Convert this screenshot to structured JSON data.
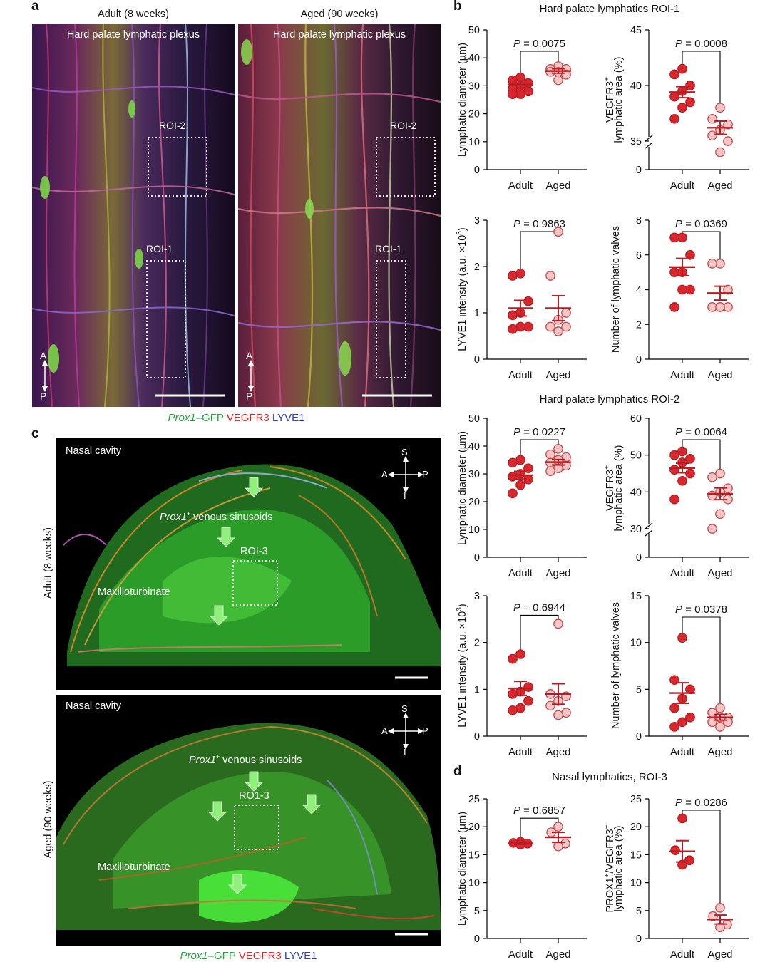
{
  "panel_a": {
    "letter": "a",
    "images": [
      {
        "title": "Adult (8 weeks)",
        "label": "Hard palate lymphatic plexus",
        "roi2": "ROI-2",
        "roi1": "ROI-1",
        "axis_a": "A",
        "axis_p": "P"
      },
      {
        "title": "Aged (90 weeks)",
        "label": "Hard palate lymphatic plexus",
        "roi2": "ROI-2",
        "roi1": "ROI-1",
        "axis_a": "A",
        "axis_p": "P"
      }
    ],
    "legend": {
      "gene": "Prox1",
      "gfp": "–GFP",
      "vegfr3": "VEGFR3",
      "lyve1": "LYVE1"
    }
  },
  "panel_c": {
    "letter": "c",
    "images": [
      {
        "row_label": "Adult (8 weeks)",
        "cavity": "Nasal cavity",
        "sinusoids_gene": "Prox1",
        "sinusoids_sup": "+",
        "sinusoids": " venous sinusoids",
        "roi": "ROI-3",
        "turbinate": "Maxilloturbinate",
        "axis_s": "S",
        "axis_i": "I",
        "axis_a": "A",
        "axis_p": "P"
      },
      {
        "row_label": "Aged (90 weeks)",
        "cavity": "Nasal cavity",
        "sinusoids_gene": "Prox1",
        "sinusoids_sup": "+",
        "sinusoids": " venous sinusoids",
        "roi": "RO1-3",
        "turbinate": "Maxilloturbinate",
        "axis_s": "S",
        "axis_i": "I",
        "axis_a": "A",
        "axis_p": "P"
      }
    ],
    "legend": {
      "gene": "Prox1",
      "gfp": "–GFP",
      "vegfr3": "VEGFR3",
      "lyve1": "LYVE1"
    }
  },
  "panel_b": {
    "letter": "b",
    "roi1_title": "Hard palate lymphatics ROI-1",
    "roi2_title": "Hard palate lymphatics ROI-2"
  },
  "panel_d": {
    "letter": "d",
    "title": "Nasal lymphatics, ROI-3"
  },
  "colors": {
    "adult": "#d9272e",
    "aged": "#f6c6c4",
    "mean_bar": "#b81d24"
  },
  "chart_data": [
    {
      "type": "scatter",
      "panel": "b-ROI-1",
      "ylabel": "Lymphatic diameter (µm)",
      "categories": [
        "Adult",
        "Aged"
      ],
      "ylim": [
        0,
        50
      ],
      "yticks": [
        0,
        10,
        20,
        30,
        40,
        50
      ],
      "p_value": "0.0075",
      "series": [
        {
          "name": "Adult",
          "values": [
            33,
            32,
            30,
            29,
            28,
            27,
            27,
            31
          ],
          "mean": 30.5,
          "sem": 1.3
        },
        {
          "name": "Aged",
          "values": [
            37,
            36,
            35,
            35,
            36,
            34,
            32
          ],
          "mean": 35.3,
          "sem": 0.8
        }
      ]
    },
    {
      "type": "scatter",
      "panel": "b-ROI-1",
      "ylabel": "VEGFR3+ lymphatic area (%)",
      "ylabel_sup": "+",
      "ylabel_main": "VEGFR3",
      "ylabel_line2": "lymphatic area (%)",
      "categories": [
        "Adult",
        "Aged"
      ],
      "ylim": [
        0,
        45
      ],
      "axis_break": true,
      "yticks": [
        0,
        35,
        40,
        45
      ],
      "p_value": "0.0008",
      "series": [
        {
          "name": "Adult",
          "values": [
            41.5,
            41,
            40,
            39.5,
            39,
            38.5,
            38,
            37
          ],
          "mean": 39.4,
          "sem": 0.5
        },
        {
          "name": "Aged",
          "values": [
            38,
            37,
            36.5,
            36,
            35.5,
            35,
            34
          ],
          "mean": 36.2,
          "sem": 0.6
        }
      ]
    },
    {
      "type": "scatter",
      "panel": "b-ROI-1",
      "ylabel": "LYVE1 intensity (a.u. ×10",
      "ylabel_sup": "3",
      "ylabel_tail": ")",
      "categories": [
        "Adult",
        "Aged"
      ],
      "ylim": [
        0,
        3
      ],
      "yticks": [
        0,
        1,
        2,
        3
      ],
      "p_value": "0.9863",
      "series": [
        {
          "name": "Adult",
          "values": [
            1.8,
            1.85,
            1.25,
            1.0,
            0.95,
            0.7,
            0.65,
            0.7
          ],
          "mean": 1.1,
          "sem": 0.17
        },
        {
          "name": "Aged",
          "values": [
            2.75,
            1.8,
            1.0,
            0.85,
            0.7,
            0.7,
            0.6
          ],
          "mean": 1.1,
          "sem": 0.27
        }
      ]
    },
    {
      "type": "scatter",
      "panel": "b-ROI-1",
      "ylabel": "Number of lymphatic valves",
      "categories": [
        "Adult",
        "Aged"
      ],
      "ylim": [
        0,
        8
      ],
      "yticks": [
        0,
        2,
        4,
        6,
        8
      ],
      "p_value": "0.0369",
      "series": [
        {
          "name": "Adult",
          "values": [
            7,
            7,
            6,
            5,
            5,
            4,
            4,
            3
          ],
          "mean": 5.3,
          "sem": 0.5
        },
        {
          "name": "Aged",
          "values": [
            5.5,
            5.5,
            4,
            3,
            3,
            3,
            3
          ],
          "mean": 3.8,
          "sem": 0.4
        }
      ]
    },
    {
      "type": "scatter",
      "panel": "b-ROI-2",
      "ylabel": "Lymphatic diameter (µm)",
      "categories": [
        "Adult",
        "Aged"
      ],
      "ylim": [
        0,
        50
      ],
      "yticks": [
        0,
        10,
        20,
        30,
        40,
        50
      ],
      "p_value": "0.0227",
      "series": [
        {
          "name": "Adult",
          "values": [
            35,
            34,
            32,
            30,
            29,
            28,
            26,
            23
          ],
          "mean": 29.5,
          "sem": 1.4
        },
        {
          "name": "Aged",
          "values": [
            39,
            37,
            36,
            35,
            34,
            33,
            32,
            31
          ],
          "mean": 34.2,
          "sem": 1.0
        }
      ]
    },
    {
      "type": "scatter",
      "panel": "b-ROI-2",
      "ylabel": "VEGFR3+ lymphatic area (%)",
      "ylabel_sup": "+",
      "ylabel_main": "VEGFR3",
      "ylabel_line2": "lymphatic area (%)",
      "categories": [
        "Adult",
        "Aged"
      ],
      "ylim": [
        0,
        60
      ],
      "axis_break": true,
      "yticks": [
        0,
        30,
        40,
        50,
        60
      ],
      "p_value": "0.0064",
      "series": [
        {
          "name": "Adult",
          "values": [
            51,
            50,
            49,
            48,
            46,
            45,
            43,
            38
          ],
          "mean": 46.5,
          "sem": 1.3
        },
        {
          "name": "Aged",
          "values": [
            45,
            44,
            41,
            40,
            39,
            38,
            34,
            30
          ],
          "mean": 39.5,
          "sem": 1.6
        }
      ]
    },
    {
      "type": "scatter",
      "panel": "b-ROI-2",
      "ylabel": "LYVE1 intensity (a.u. ×10",
      "ylabel_sup": "3",
      "ylabel_tail": ")",
      "categories": [
        "Adult",
        "Aged"
      ],
      "ylim": [
        0,
        3
      ],
      "yticks": [
        0,
        1,
        2,
        3
      ],
      "p_value": "0.6944",
      "series": [
        {
          "name": "Adult",
          "values": [
            1.75,
            1.65,
            1.05,
            0.95,
            0.9,
            0.75,
            0.6,
            0.55
          ],
          "mean": 1.02,
          "sem": 0.15
        },
        {
          "name": "Aged",
          "values": [
            2.4,
            0.9,
            0.85,
            0.75,
            0.65,
            0.5,
            0.45
          ],
          "mean": 0.9,
          "sem": 0.22
        }
      ]
    },
    {
      "type": "scatter",
      "panel": "b-ROI-2",
      "ylabel": "Number of lymphatic valves",
      "categories": [
        "Adult",
        "Aged"
      ],
      "ylim": [
        0,
        15
      ],
      "yticks": [
        0,
        5,
        10,
        15
      ],
      "p_value": "0.0378",
      "series": [
        {
          "name": "Adult",
          "values": [
            10.5,
            6,
            5,
            4,
            3,
            2,
            1.5,
            1
          ],
          "mean": 4.6,
          "sem": 1.1
        },
        {
          "name": "Aged",
          "values": [
            3,
            2.5,
            2,
            2,
            1.5,
            1.5,
            1
          ],
          "mean": 2.0,
          "sem": 0.3
        }
      ]
    },
    {
      "type": "scatter",
      "panel": "d",
      "ylabel": "Lymphatic diameter (µm)",
      "categories": [
        "Adult",
        "Aged"
      ],
      "ylim": [
        0,
        25
      ],
      "yticks": [
        0,
        5,
        10,
        15,
        20,
        25
      ],
      "p_value": "0.6857",
      "series": [
        {
          "name": "Adult",
          "values": [
            17.3,
            17.0,
            16.8,
            17.1
          ],
          "mean": 17.0,
          "sem": 0.15
        },
        {
          "name": "Aged",
          "values": [
            20,
            19,
            17,
            16.5
          ],
          "mean": 18.1,
          "sem": 0.9
        }
      ]
    },
    {
      "type": "scatter",
      "panel": "d",
      "ylabel": "PROX1+/VEGFR3+ lymphatic area (%)",
      "ylabel_sup": "+",
      "ylabel_main": "PROX1",
      "ylabel_mid": "/VEGFR3",
      "ylabel_line2": "lymphatic area (%)",
      "categories": [
        "Adult",
        "Aged"
      ],
      "ylim": [
        0,
        25
      ],
      "yticks": [
        0,
        5,
        10,
        15,
        20,
        25
      ],
      "p_value": "0.0286",
      "series": [
        {
          "name": "Adult",
          "values": [
            21.5,
            15.8,
            14.0,
            13.2
          ],
          "mean": 15.6,
          "sem": 1.9
        },
        {
          "name": "Aged",
          "values": [
            5.5,
            4.0,
            2.5,
            2.0
          ],
          "mean": 3.4,
          "sem": 0.8
        }
      ]
    }
  ]
}
